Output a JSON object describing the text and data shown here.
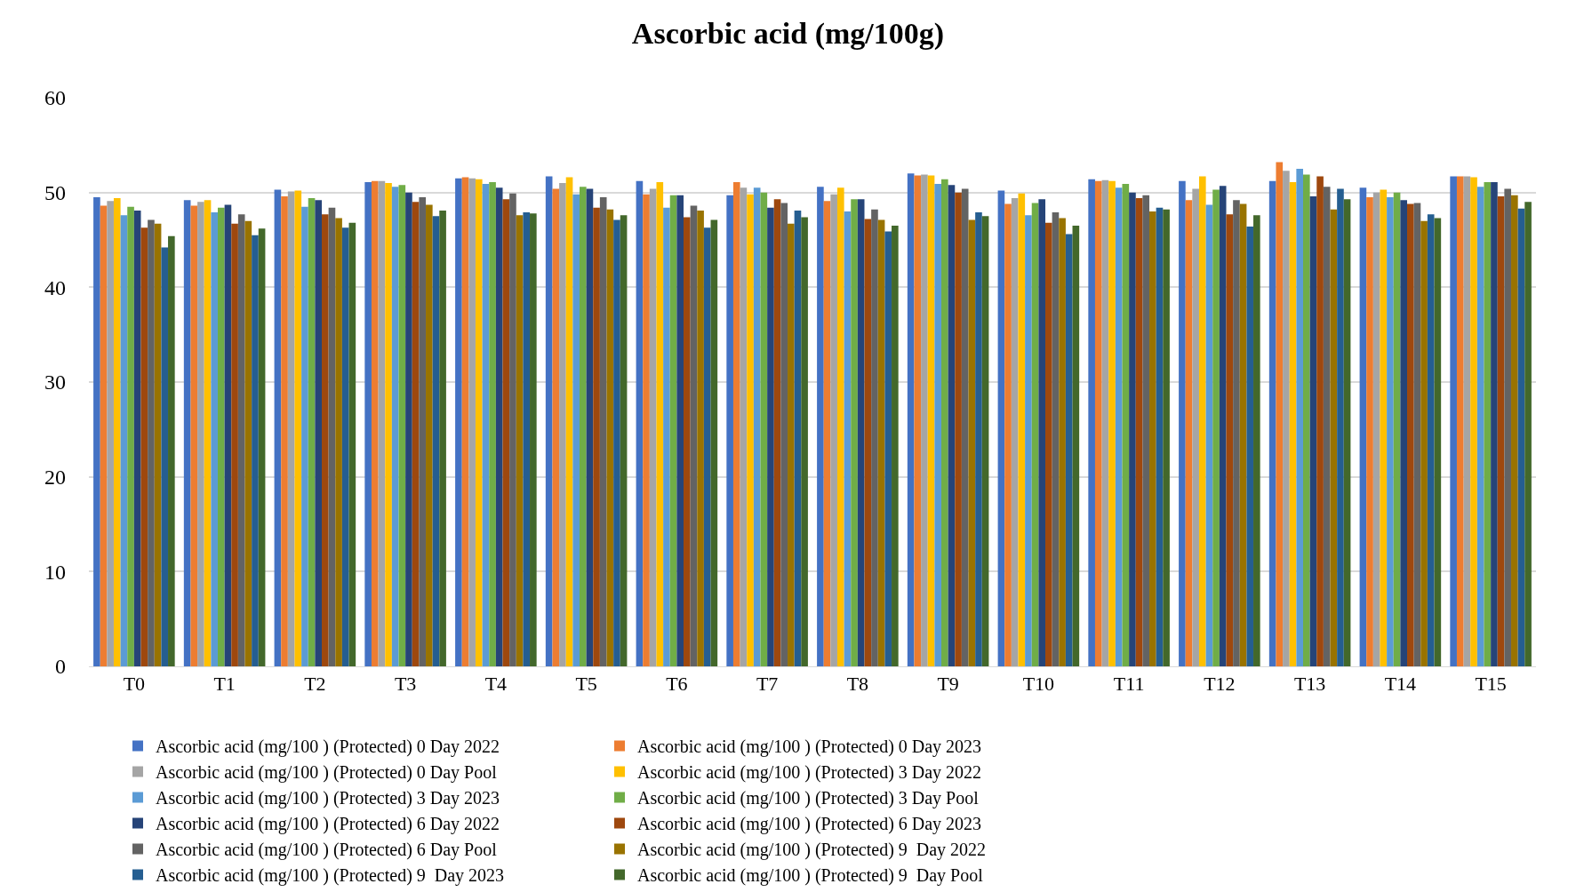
{
  "chart_data": {
    "type": "bar",
    "title": "Ascorbic acid (mg/100g)",
    "categories": [
      "T0",
      "T1",
      "T2",
      "T3",
      "T4",
      "T5",
      "T6",
      "T7",
      "T8",
      "T9",
      "T10",
      "T11",
      "T12",
      "T13",
      "T14",
      "T15"
    ],
    "ylim": [
      0,
      60
    ],
    "yticks": [
      0,
      10,
      20,
      30,
      40,
      50,
      60
    ],
    "grid": "y",
    "legend": "bottom",
    "series": [
      {
        "name": "Ascorbic acid (mg/100 ) (Protected) 0 Day 2022",
        "color": "#4472c4",
        "values": [
          49.5,
          49.2,
          50.3,
          51.1,
          51.5,
          51.7,
          51.2,
          49.7,
          50.6,
          52.0,
          50.2,
          51.4,
          51.2,
          51.2,
          50.5,
          51.7
        ]
      },
      {
        "name": "Ascorbic acid (mg/100 ) (Protected) 0 Day 2023",
        "color": "#ed7d31",
        "values": [
          48.6,
          48.6,
          49.6,
          51.2,
          51.6,
          50.4,
          49.8,
          51.1,
          49.1,
          51.8,
          48.8,
          51.2,
          49.2,
          53.2,
          49.5,
          51.7
        ]
      },
      {
        "name": "Ascorbic acid (mg/100 ) (Protected) 0 Day Pool",
        "color": "#a5a5a5",
        "values": [
          49.1,
          49.0,
          50.1,
          51.2,
          51.5,
          51.0,
          50.4,
          50.5,
          49.8,
          51.9,
          49.4,
          51.3,
          50.4,
          52.3,
          50.0,
          51.7
        ]
      },
      {
        "name": "Ascorbic acid (mg/100 ) (Protected) 3 Day 2022",
        "color": "#ffc000",
        "values": [
          49.4,
          49.2,
          50.2,
          51.0,
          51.4,
          51.6,
          51.1,
          49.8,
          50.5,
          51.8,
          49.9,
          51.2,
          51.7,
          51.1,
          50.3,
          51.6
        ]
      },
      {
        "name": "Ascorbic acid (mg/100 ) (Protected) 3 Day 2023",
        "color": "#5b9bd5",
        "values": [
          47.6,
          47.9,
          48.5,
          50.6,
          50.9,
          49.8,
          48.4,
          50.5,
          48.0,
          50.9,
          47.6,
          50.5,
          48.7,
          52.5,
          49.5,
          50.6
        ]
      },
      {
        "name": "Ascorbic acid (mg/100 ) (Protected) 3 Day Pool",
        "color": "#70ad47",
        "values": [
          48.5,
          48.4,
          49.4,
          50.8,
          51.1,
          50.6,
          49.7,
          50.0,
          49.3,
          51.4,
          48.9,
          50.9,
          50.3,
          51.9,
          50.0,
          51.1
        ]
      },
      {
        "name": "Ascorbic acid (mg/100 ) (Protected) 6 Day 2022",
        "color": "#264478",
        "values": [
          48.1,
          48.7,
          49.2,
          50.0,
          50.5,
          50.4,
          49.7,
          48.4,
          49.3,
          50.8,
          49.3,
          50.0,
          50.7,
          49.6,
          49.2,
          51.1
        ]
      },
      {
        "name": "Ascorbic acid (mg/100 ) (Protected) 6 Day 2023",
        "color": "#9e480e",
        "values": [
          46.3,
          46.7,
          47.7,
          49.0,
          49.3,
          48.4,
          47.4,
          49.3,
          47.2,
          50.0,
          46.8,
          49.4,
          47.7,
          51.7,
          48.8,
          49.6
        ]
      },
      {
        "name": "Ascorbic acid (mg/100 ) (Protected) 6 Day Pool",
        "color": "#636363",
        "values": [
          47.1,
          47.7,
          48.4,
          49.5,
          49.9,
          49.5,
          48.6,
          48.9,
          48.2,
          50.4,
          47.9,
          49.7,
          49.2,
          50.6,
          48.9,
          50.4
        ]
      },
      {
        "name": "Ascorbic acid (mg/100 ) (Protected) 9  Day 2022",
        "color": "#997300",
        "values": [
          46.7,
          47.0,
          47.3,
          48.7,
          47.6,
          48.2,
          48.1,
          46.7,
          47.1,
          47.1,
          47.3,
          48.0,
          48.8,
          48.2,
          47.0,
          49.7
        ]
      },
      {
        "name": "Ascorbic acid (mg/100 ) (Protected) 9  Day 2023",
        "color": "#255e91",
        "values": [
          44.2,
          45.5,
          46.3,
          47.5,
          47.9,
          47.1,
          46.3,
          48.1,
          45.9,
          47.9,
          45.6,
          48.4,
          46.4,
          50.4,
          47.7,
          48.3
        ]
      },
      {
        "name": "Ascorbic acid (mg/100 ) (Protected) 9  Day Pool",
        "color": "#43682b",
        "values": [
          45.4,
          46.2,
          46.8,
          48.1,
          47.8,
          47.6,
          47.1,
          47.4,
          46.5,
          47.5,
          46.5,
          48.2,
          47.6,
          49.3,
          47.3,
          49.0
        ]
      }
    ]
  }
}
